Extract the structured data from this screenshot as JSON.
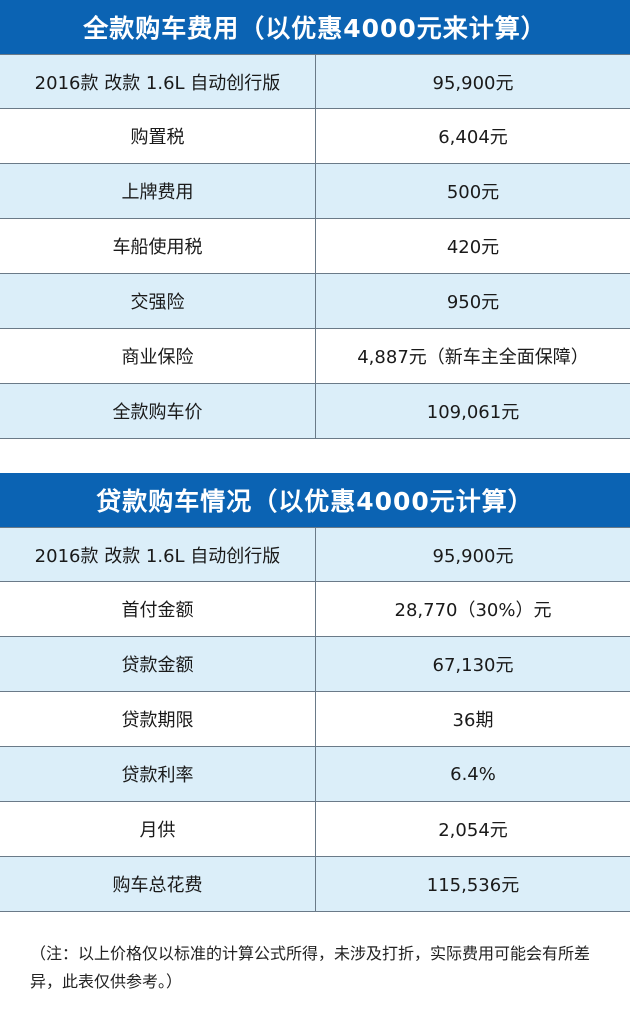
{
  "table1": {
    "title": "全款购车费用（以优惠4000元来计算）",
    "rows": [
      {
        "label": "2016款 改款 1.6L 自动创行版",
        "value": "95,900元"
      },
      {
        "label": "购置税",
        "value": "6,404元"
      },
      {
        "label": "上牌费用",
        "value": "500元"
      },
      {
        "label": "车船使用税",
        "value": "420元"
      },
      {
        "label": "交强险",
        "value": "950元"
      },
      {
        "label": "商业保险",
        "value": "4,887元（新车主全面保障）"
      },
      {
        "label": "全款购车价",
        "value": "109,061元"
      }
    ]
  },
  "table2": {
    "title": "贷款购车情况（以优惠4000元计算）",
    "rows": [
      {
        "label": "2016款 改款 1.6L 自动创行版",
        "value": "95,900元"
      },
      {
        "label": "首付金额",
        "value": "28,770（30%）元"
      },
      {
        "label": "贷款金额",
        "value": "67,130元"
      },
      {
        "label": "贷款期限",
        "value": "36期"
      },
      {
        "label": "贷款利率",
        "value": "6.4%"
      },
      {
        "label": "月供",
        "value": "2,054元"
      },
      {
        "label": "购车总花费",
        "value": "115,536元"
      }
    ]
  },
  "note": "（注：以上价格仅以标准的计算公式所得，未涉及打折，实际费用可能会有所差异，此表仅供参考。）",
  "colors": {
    "header": "#0b63b3",
    "alt_row": "#dbeef9",
    "border": "#6a7a88"
  }
}
